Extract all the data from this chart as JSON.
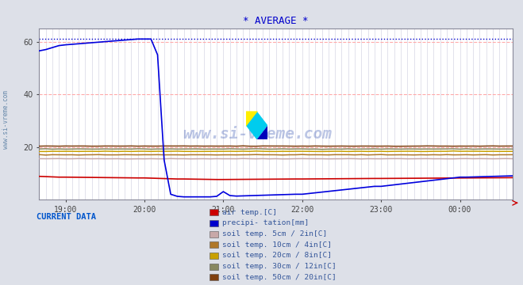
{
  "title": "* AVERAGE *",
  "title_color": "#0000cc",
  "bg_color": "#dde0e8",
  "plot_bg_color": "#ffffff",
  "grid_color_red": "#ffaaaa",
  "grid_color_minor": "#ccccdd",
  "ylim": [
    0,
    65
  ],
  "yticks": [
    20,
    40,
    60
  ],
  "xtick_labels": [
    "19:00",
    "20:00",
    "21:00",
    "22:00",
    "23:00",
    "00:00"
  ],
  "watermark": "www.si-vreme.com",
  "watermark_color": "#2244aa",
  "watermark_alpha": 0.3,
  "legend_title": "CURRENT DATA",
  "legend_title_color": "#0055cc",
  "legend_items": [
    {
      "label": "air temp.[C]",
      "color": "#cc0000"
    },
    {
      "label": "precipi- tation[mm]",
      "color": "#0000cc"
    },
    {
      "label": "soil temp. 5cm / 2in[C]",
      "color": "#c8a8a8"
    },
    {
      "label": "soil temp. 10cm / 4in[C]",
      "color": "#b07828"
    },
    {
      "label": "soil temp. 20cm / 8in[C]",
      "color": "#c8a000"
    },
    {
      "label": "soil temp. 30cm / 12in[C]",
      "color": "#888860"
    },
    {
      "label": "soil temp. 50cm / 20in[C]",
      "color": "#804010"
    }
  ],
  "line_colors": {
    "air_temp": "#cc0000",
    "precipitation": "#0000dd",
    "soil_5": "#c8a8a8",
    "soil_10": "#b07828",
    "soil_20": "#c8a000",
    "soil_30": "#888860",
    "soil_50": "#804010"
  },
  "dotted_line_color": "#0000cc",
  "dotted_line_y": 61,
  "font_family": "monospace"
}
